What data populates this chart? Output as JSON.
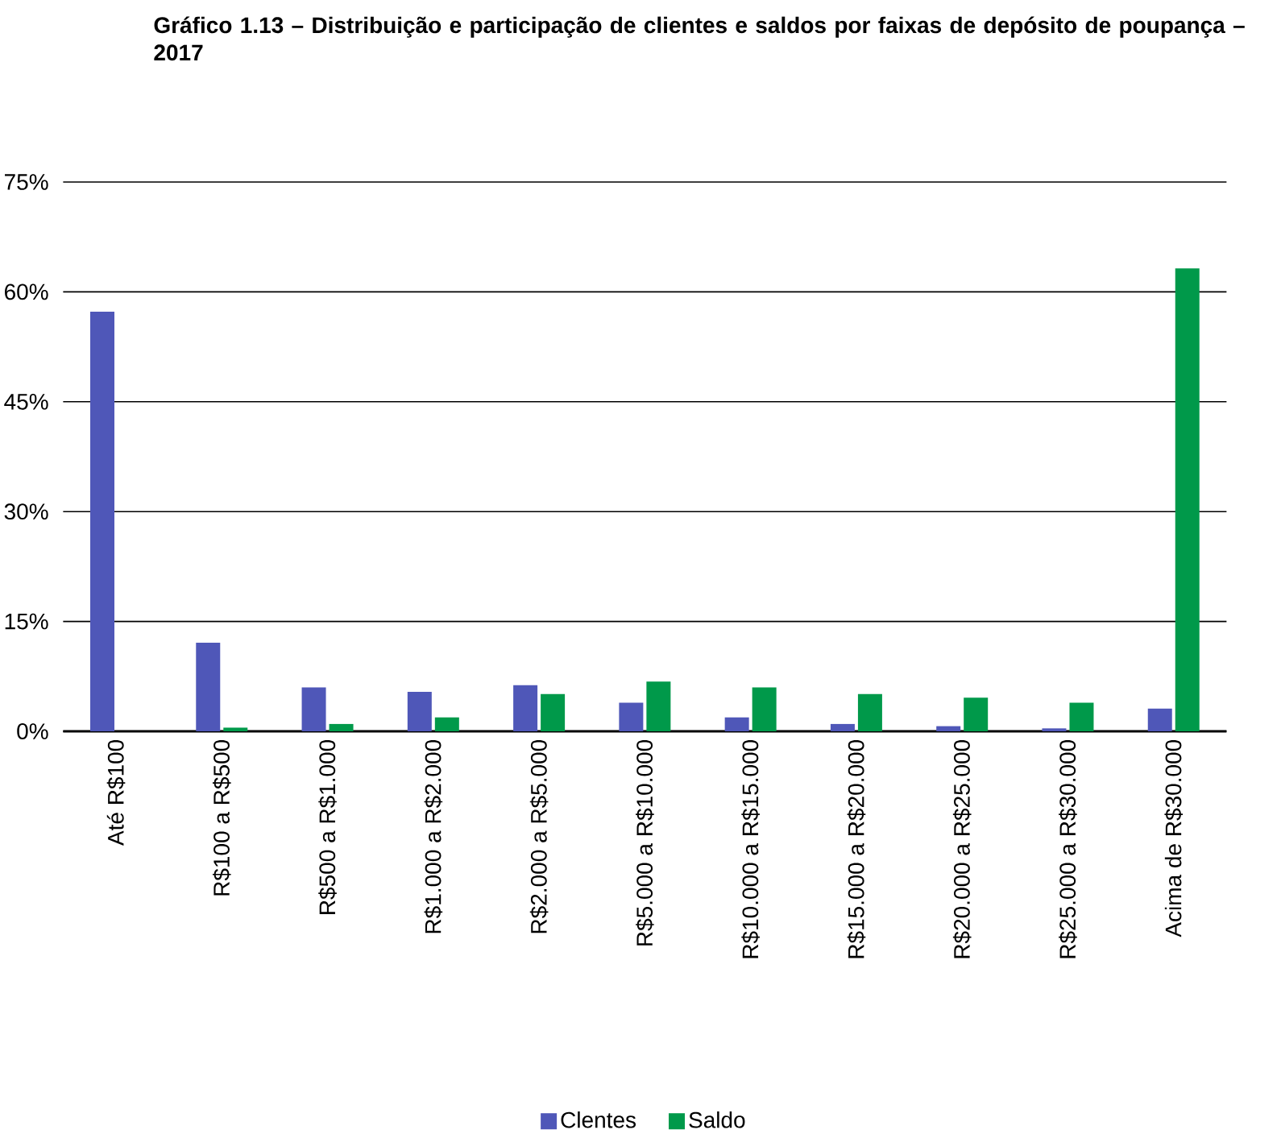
{
  "chart_data": {
    "type": "bar",
    "title": "Gráfico 1.13 – Distribuição e participação de clientes e saldos por faixas de depósito de poupança – 2017",
    "categories": [
      "Até R$100",
      "R$100 a R$500",
      "R$500 a R$1.000",
      "R$1.000 a R$2.000",
      "R$2.000 a R$5.000",
      "R$5.000 a R$10.000",
      "R$10.000 a R$15.000",
      "R$15.000 a R$20.000",
      "R$20.000 a R$25.000",
      "R$25.000 a R$30.000",
      "Acima de R$30.000"
    ],
    "series": [
      {
        "name": "Clentes",
        "color": "#4f57b8",
        "values": [
          57.3,
          12.1,
          6.0,
          5.4,
          6.3,
          3.9,
          1.9,
          1.0,
          0.7,
          0.4,
          3.1
        ]
      },
      {
        "name": "Saldo",
        "color": "#00994a",
        "values": [
          0,
          0.5,
          1.0,
          1.9,
          5.1,
          6.8,
          6.0,
          5.1,
          4.6,
          3.9,
          63.2
        ]
      }
    ],
    "ylim": [
      0,
      75
    ],
    "yticks": [
      {
        "value": 0,
        "label": "0%"
      },
      {
        "value": 15,
        "label": "15%"
      },
      {
        "value": 30,
        "label": "30%"
      },
      {
        "value": 45,
        "label": "45%"
      },
      {
        "value": 60,
        "label": "60%"
      },
      {
        "value": 75,
        "label": "75%"
      }
    ],
    "grid": "y",
    "legend": "bottom"
  }
}
